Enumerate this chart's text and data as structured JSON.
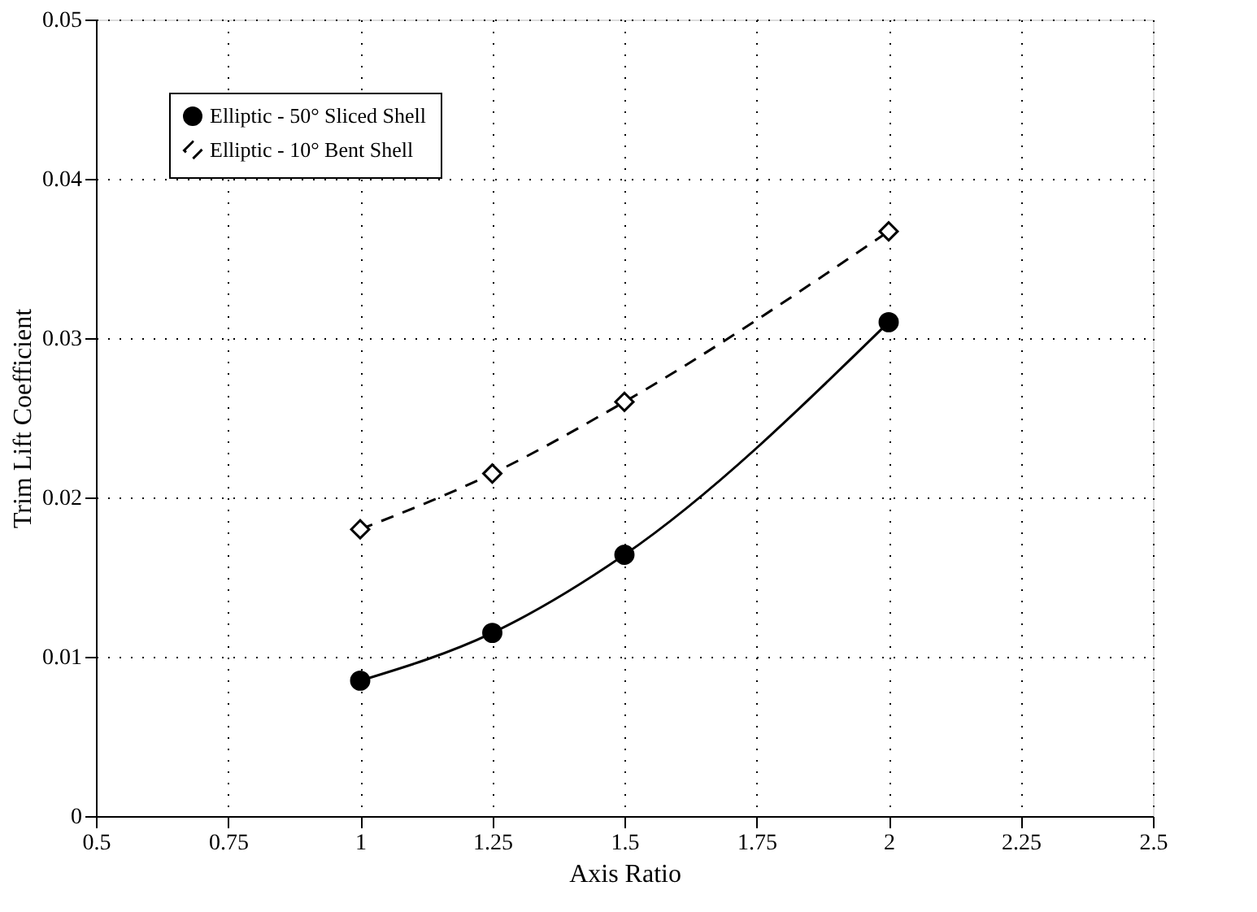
{
  "chart_data": {
    "type": "line",
    "xlabel": "Axis Ratio",
    "ylabel": "Trim Lift Coefficient",
    "x": [
      1,
      1.25,
      1.5,
      2
    ],
    "series": [
      {
        "name": "Elliptic - 50° Sliced Shell",
        "color": "#000000",
        "values": [
          0.0085,
          0.0115,
          0.0164,
          0.031
        ],
        "marker": "circle",
        "line_style": "solid"
      },
      {
        "name": "Elliptic - 10° Bent Shell",
        "color": "#000000",
        "values": [
          0.018,
          0.0215,
          0.026,
          0.0367
        ],
        "marker": "diamond",
        "line_style": "dashed"
      }
    ],
    "xlim": [
      0.5,
      2.5
    ],
    "xticks": [
      0.5,
      0.75,
      1,
      1.25,
      1.5,
      1.75,
      2,
      2.25,
      2.5
    ],
    "ylim": [
      0,
      0.05
    ],
    "yticks": [
      0,
      0.01,
      0.02,
      0.03,
      0.04,
      0.05
    ],
    "grid": true,
    "legend": "top left"
  }
}
